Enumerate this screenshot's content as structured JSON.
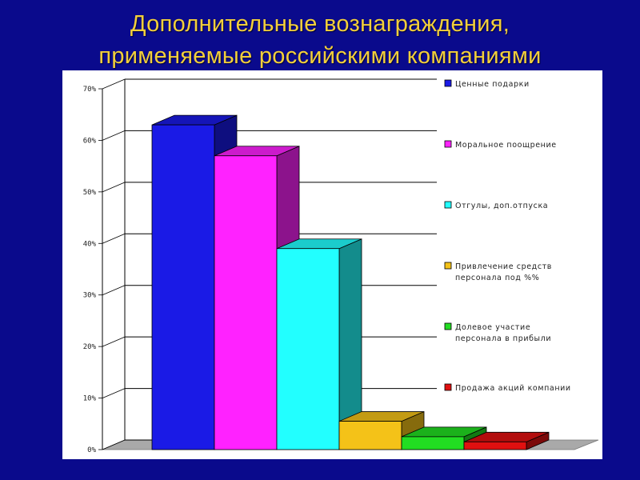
{
  "title": {
    "line1": "Дополнительные вознаграждения,",
    "line2": "применяемые российскими компаниями"
  },
  "colors": {
    "background": "#0a0a8c",
    "title": "#f2cf3a",
    "panel": "#ffffff"
  },
  "chart_data": {
    "type": "bar",
    "title": "",
    "xlabel": "",
    "ylabel": "",
    "ylim": [
      0,
      70
    ],
    "y_ticks": [
      "0%",
      "10%",
      "20%",
      "30%",
      "40%",
      "50%",
      "60%",
      "70%"
    ],
    "grid": true,
    "legend_position": "right",
    "series": [
      {
        "name": "Ценные подарки",
        "value": 63,
        "color": "#1a1ae6"
      },
      {
        "name": "Моральное поощрение",
        "value": 57,
        "color": "#ff22ff"
      },
      {
        "name": "Отгулы, доп.отпуска",
        "value": 39,
        "color": "#22ffff"
      },
      {
        "name": "Привлечение средств персонала под %%",
        "value": 5.5,
        "color": "#f4c218"
      },
      {
        "name": "Долевое участие персонала в прибыли",
        "value": 2.5,
        "color": "#22dd22"
      },
      {
        "name": "Продажа акций компании",
        "value": 1.5,
        "color": "#e01010"
      }
    ]
  }
}
